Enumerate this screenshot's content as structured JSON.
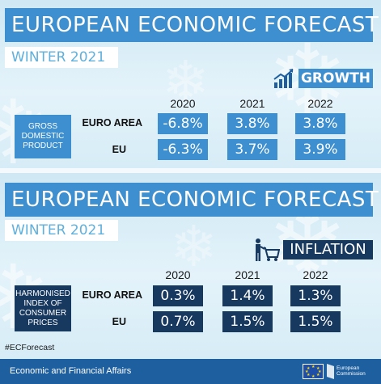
{
  "top": {
    "title": "EUROPEAN ECONOMIC FORECAST",
    "subtitle": "WINTER 2021",
    "badge": "GROWTH",
    "category": "GROSS\nDOMESTIC\nPRODUCT",
    "years": [
      "2020",
      "2021",
      "2022"
    ],
    "rows": [
      {
        "label": "EURO AREA",
        "values": [
          "-6.8%",
          "3.8%",
          "3.8%"
        ]
      },
      {
        "label": "EU",
        "values": [
          "-6.3%",
          "3.7%",
          "3.9%"
        ]
      }
    ]
  },
  "bottom": {
    "title": "EUROPEAN ECONOMIC FORECAST",
    "subtitle": "WINTER 2021",
    "badge": "INFLATION",
    "category": "HARMONISED\nINDEX OF\nCONSUMER\nPRICES",
    "years": [
      "2020",
      "2021",
      "2022"
    ],
    "rows": [
      {
        "label": "EURO AREA",
        "values": [
          "0.3%",
          "1.4%",
          "1.3%"
        ]
      },
      {
        "label": "EU",
        "values": [
          "0.7%",
          "1.5%",
          "1.5%"
        ]
      }
    ]
  },
  "hashtag": "#ECForecast",
  "footer": {
    "department": "Economic and Financial Affairs",
    "logo_text": "European\nCommission"
  },
  "colors": {
    "growth_blue": "#3d8fcf",
    "inflation_navy": "#17385f",
    "footer_blue": "#1d5f9f"
  },
  "icons": {
    "growth": "chart-trend-up-icon",
    "inflation": "shopping-cart-person-icon",
    "decoration": "snowflake-icon"
  }
}
